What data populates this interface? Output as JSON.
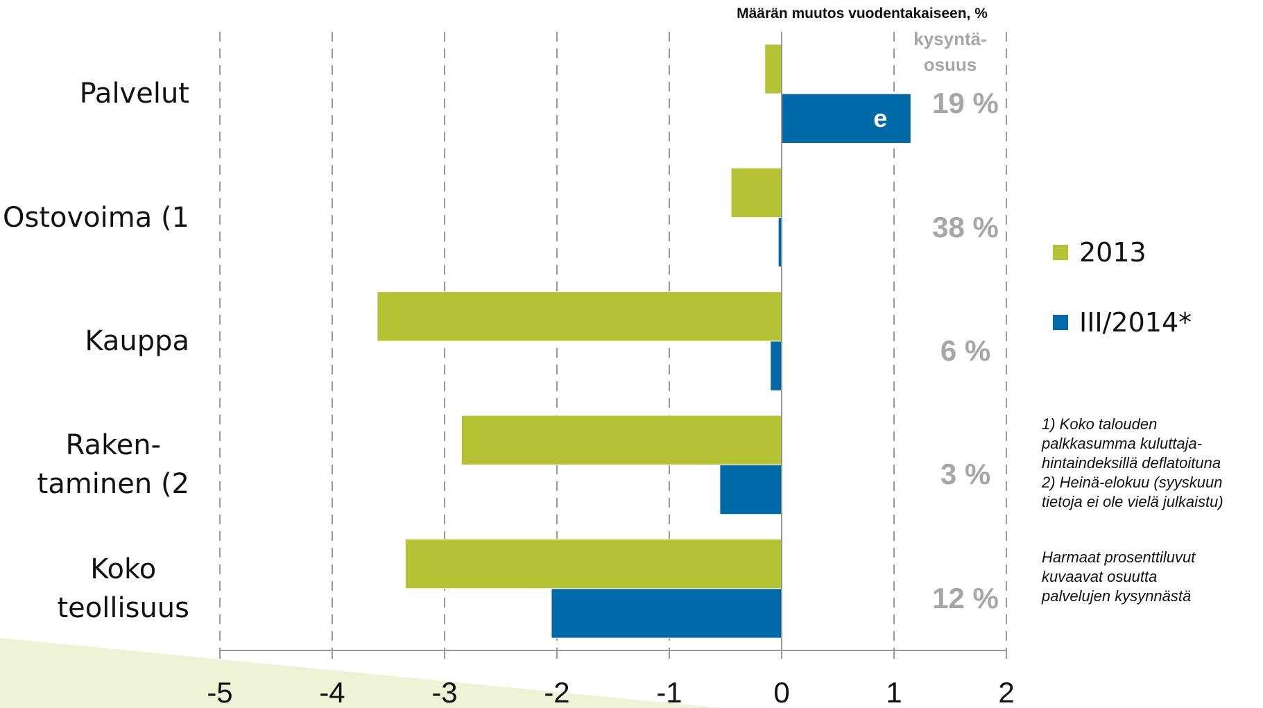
{
  "chart_data": {
    "type": "bar",
    "orientation": "horizontal",
    "title": "Määrän muutos vuodentakaiseen, %",
    "categories": [
      "Palvelut",
      "Ostovoima (1",
      "Kauppa",
      "Raken-\ntaminen (2",
      "Koko\nteollisuus"
    ],
    "series": [
      {
        "name": "2013",
        "color": "#b5c234",
        "values": [
          -0.15,
          -0.45,
          -3.6,
          -2.85,
          -3.35
        ]
      },
      {
        "name": "III/2014*",
        "color": "#0069a8",
        "values": [
          1.15,
          -0.03,
          -0.1,
          -0.55,
          -2.05
        ]
      }
    ],
    "share_header": "kysyntä-\nosuus",
    "shares": [
      "19 %",
      "38 %",
      "6 %",
      "3 %",
      "12 %"
    ],
    "annotation": "e",
    "notes": [
      "1) Koko talouden\npalkkasumma kuluttaja-\nhintaindeksillä deflatoituna\n2) Heinä-elokuu (syyskuun\ntietoja ei ole vielä julkaistu)",
      "Harmaat prosenttiluvut\nkuvaavat osuutta\npalvelujen kysynnästä"
    ],
    "xlim": [
      -5,
      2
    ],
    "xticks": [
      -5,
      -4,
      -3,
      -2,
      -1,
      0,
      1,
      2
    ],
    "grid": true,
    "legend": "right"
  }
}
